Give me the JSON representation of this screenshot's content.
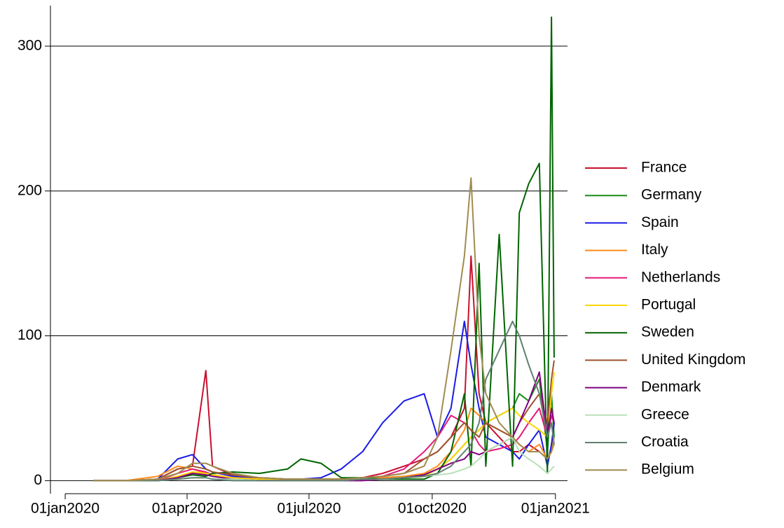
{
  "chart_data": {
    "type": "line",
    "x": [
      "2020-01-22",
      "2020-02-15",
      "2020-03-10",
      "2020-03-25",
      "2020-04-05",
      "2020-04-15",
      "2020-04-20",
      "2020-05-05",
      "2020-05-25",
      "2020-06-15",
      "2020-06-25",
      "2020-07-10",
      "2020-07-25",
      "2020-08-10",
      "2020-08-25",
      "2020-09-10",
      "2020-09-25",
      "2020-10-05",
      "2020-10-15",
      "2020-10-25",
      "2020-10-30",
      "2020-11-05",
      "2020-11-10",
      "2020-11-20",
      "2020-11-30",
      "2020-12-05",
      "2020-12-12",
      "2020-12-20",
      "2020-12-26",
      "2020-12-29",
      "2020-12-31"
    ],
    "series": [
      {
        "name": "France",
        "color": "#c8102e",
        "values": [
          0,
          0,
          1,
          8,
          10,
          76,
          10,
          4,
          2,
          1,
          1,
          1,
          1,
          2,
          5,
          10,
          15,
          20,
          30,
          50,
          155,
          60,
          40,
          30,
          20,
          20,
          25,
          20,
          15,
          20,
          40
        ]
      },
      {
        "name": "Germany",
        "color": "#1a8c1a",
        "values": [
          0,
          0,
          0,
          2,
          5,
          5,
          4,
          2,
          1,
          0,
          0,
          1,
          1,
          1,
          2,
          3,
          4,
          8,
          15,
          25,
          30,
          35,
          40,
          45,
          50,
          60,
          55,
          70,
          20,
          60,
          30
        ]
      },
      {
        "name": "Spain",
        "color": "#1a1ae6",
        "values": [
          0,
          0,
          1,
          15,
          18,
          8,
          6,
          3,
          1,
          1,
          1,
          2,
          8,
          20,
          40,
          55,
          60,
          30,
          50,
          110,
          80,
          50,
          30,
          25,
          20,
          15,
          25,
          35,
          10,
          25,
          40
        ]
      },
      {
        "name": "Italy",
        "color": "#ff8c1a",
        "values": [
          0,
          0,
          3,
          10,
          8,
          5,
          4,
          2,
          1,
          1,
          1,
          1,
          1,
          1,
          2,
          3,
          5,
          10,
          20,
          35,
          50,
          45,
          40,
          35,
          30,
          25,
          20,
          25,
          15,
          20,
          25
        ]
      },
      {
        "name": "Netherlands",
        "color": "#e6197a",
        "values": [
          0,
          0,
          0,
          5,
          8,
          6,
          4,
          2,
          1,
          0,
          0,
          0,
          1,
          2,
          3,
          8,
          20,
          30,
          45,
          40,
          35,
          25,
          20,
          22,
          25,
          30,
          40,
          50,
          30,
          45,
          40
        ]
      },
      {
        "name": "Portugal",
        "color": "#ffd700",
        "values": [
          0,
          0,
          0,
          3,
          6,
          5,
          4,
          2,
          1,
          1,
          1,
          1,
          1,
          1,
          1,
          2,
          3,
          8,
          15,
          25,
          30,
          35,
          40,
          45,
          50,
          45,
          40,
          35,
          30,
          60,
          75
        ]
      },
      {
        "name": "Sweden",
        "color": "#006400",
        "values": [
          0,
          0,
          0,
          2,
          4,
          3,
          5,
          6,
          5,
          8,
          15,
          12,
          2,
          2,
          1,
          1,
          1,
          5,
          20,
          60,
          10,
          150,
          10,
          170,
          10,
          185,
          205,
          219,
          5,
          320,
          85
        ]
      },
      {
        "name": "United Kingdom",
        "color": "#a0522d",
        "values": [
          0,
          0,
          1,
          8,
          10,
          8,
          6,
          4,
          2,
          1,
          1,
          1,
          1,
          2,
          3,
          5,
          15,
          20,
          30,
          40,
          35,
          30,
          40,
          35,
          30,
          40,
          50,
          60,
          40,
          70,
          83
        ]
      },
      {
        "name": "Denmark",
        "color": "#800080",
        "values": [
          0,
          0,
          0,
          2,
          5,
          4,
          3,
          1,
          0,
          0,
          0,
          0,
          0,
          0,
          1,
          2,
          4,
          8,
          12,
          15,
          20,
          18,
          20,
          25,
          30,
          40,
          55,
          75,
          30,
          50,
          40
        ]
      },
      {
        "name": "Greece",
        "color": "#b9e0b9",
        "values": [
          0,
          0,
          0,
          1,
          2,
          2,
          1,
          1,
          0,
          0,
          0,
          0,
          0,
          1,
          1,
          2,
          3,
          4,
          5,
          8,
          10,
          15,
          20,
          25,
          30,
          20,
          15,
          10,
          5,
          8,
          10
        ]
      },
      {
        "name": "Croatia",
        "color": "#5f8070",
        "values": [
          0,
          0,
          0,
          1,
          2,
          2,
          1,
          0,
          0,
          0,
          0,
          0,
          0,
          1,
          1,
          2,
          3,
          5,
          10,
          20,
          25,
          40,
          70,
          90,
          110,
          100,
          80,
          60,
          30,
          40,
          25
        ]
      },
      {
        "name": "Belgium",
        "color": "#a08c50",
        "values": [
          0,
          0,
          1,
          5,
          12,
          12,
          10,
          5,
          2,
          1,
          1,
          1,
          1,
          2,
          3,
          5,
          10,
          30,
          90,
          155,
          209,
          100,
          60,
          40,
          30,
          25,
          20,
          20,
          15,
          20,
          30
        ]
      }
    ],
    "xlim": [
      "2019-12-21",
      "2021-01-10"
    ],
    "xticks": [
      {
        "value": "2020-01-01",
        "label": "01jan2020"
      },
      {
        "value": "2020-04-01",
        "label": "01apr2020"
      },
      {
        "value": "2020-07-01",
        "label": "01jul2020"
      },
      {
        "value": "2020-10-01",
        "label": "01oct2020"
      },
      {
        "value": "2021-01-01",
        "label": "01jan2021"
      }
    ],
    "ylim": [
      -9,
      328
    ],
    "yticks": [
      0,
      100,
      200,
      300
    ],
    "grid": true,
    "legend": "right"
  }
}
